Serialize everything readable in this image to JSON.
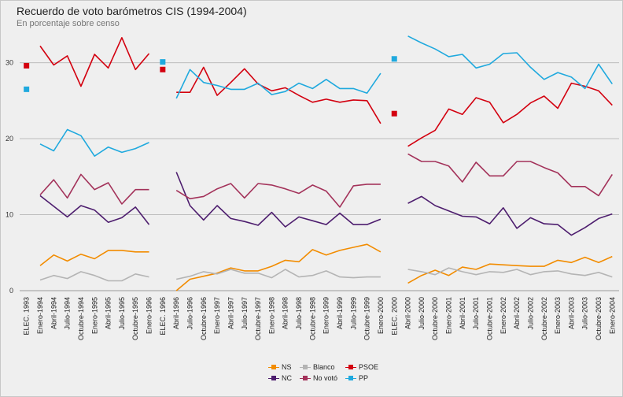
{
  "header": {
    "title": "Recuerdo de voto barómetros CIS (1994-2004)",
    "subtitle": "En porcentaje sobre censo"
  },
  "chart_data": {
    "type": "line",
    "title": "Recuerdo de voto barómetros CIS (1994-2004)",
    "subtitle": "En porcentaje sobre censo",
    "ylim": [
      0,
      34
    ],
    "yticks": [
      0,
      10,
      20,
      30
    ],
    "grid": true,
    "legend_position": "bottom-center",
    "categories": [
      "ELEC. 1993",
      "Enero-1994",
      "Abril-1994",
      "Julio-1994",
      "Octubre-1994",
      "Enero-1995",
      "Abril-1995",
      "Julio-1995",
      "Octubre-1995",
      "Enero-1996",
      "ELEC. 1996",
      "Abril-1996",
      "Julio-1996",
      "Octubre-1996",
      "Enero-1997",
      "Abril-1997",
      "Julio-1997",
      "Octubre-1997",
      "Enero-1998",
      "Abril-1998",
      "Julio-1998",
      "Octubre-1998",
      "Enero-1999",
      "Abril-1999",
      "Julio-1999",
      "Octubre-1999",
      "Enero-2000",
      "ELEC. 2000",
      "Abril-2000",
      "Julio-2000",
      "Octubre-2000",
      "Enero-2001",
      "Abril-2001",
      "Julio-2001",
      "Octubre-2001",
      "Enero-2002",
      "Abril-2002",
      "Julio-2002",
      "Octubre-2002",
      "Enero-2003",
      "Abril-2003",
      "Julio-2003",
      "Octubre-2003",
      "Enero-2004"
    ],
    "segments": [
      {
        "election_index": 0,
        "start": 1,
        "end": 9
      },
      {
        "election_index": 10,
        "start": 11,
        "end": 26
      },
      {
        "election_index": 27,
        "start": 28,
        "end": 43
      }
    ],
    "series": [
      {
        "name": "NS",
        "color": "#f28c00",
        "values": [
          null,
          3.3,
          4.7,
          3.9,
          4.8,
          4.2,
          5.3,
          5.3,
          5.1,
          5.1,
          null,
          0.0,
          1.5,
          1.9,
          2.3,
          3.0,
          2.6,
          2.6,
          3.2,
          4.0,
          3.8,
          5.4,
          4.7,
          5.3,
          5.7,
          6.1,
          5.1,
          null,
          1.0,
          2.0,
          2.7,
          2.0,
          3.1,
          2.8,
          3.5,
          3.4,
          3.3,
          3.2,
          3.2,
          4.0,
          3.7,
          4.4,
          3.7,
          4.5
        ],
        "election_values": [
          null,
          null,
          null
        ]
      },
      {
        "name": "Blanco",
        "color": "#b4b4b4",
        "values": [
          null,
          1.4,
          2.0,
          1.6,
          2.5,
          2.0,
          1.3,
          1.3,
          2.2,
          1.8,
          null,
          1.5,
          1.9,
          2.5,
          2.2,
          2.8,
          2.3,
          2.3,
          1.7,
          2.8,
          1.8,
          2.0,
          2.6,
          1.8,
          1.7,
          1.8,
          1.8,
          null,
          2.8,
          2.5,
          2.1,
          3.0,
          2.5,
          2.1,
          2.5,
          2.4,
          2.8,
          2.1,
          2.5,
          2.6,
          2.2,
          2.0,
          2.4,
          1.8
        ],
        "election_values": [
          null,
          null,
          null
        ]
      },
      {
        "name": "PSOE",
        "color": "#d3000f",
        "values": [
          null,
          32.2,
          29.7,
          30.9,
          26.9,
          31.1,
          29.3,
          33.3,
          29.1,
          31.2,
          null,
          26.1,
          26.1,
          29.4,
          25.7,
          27.4,
          29.2,
          27.2,
          26.3,
          26.7,
          25.7,
          24.8,
          25.2,
          24.8,
          25.1,
          25.0,
          22.0,
          null,
          19.0,
          20.1,
          21.1,
          23.9,
          23.2,
          25.4,
          24.8,
          22.1,
          23.2,
          24.7,
          25.6,
          24.0,
          27.3,
          26.9,
          26.3,
          24.4
        ],
        "election_values": [
          29.6,
          29.1,
          23.3
        ]
      },
      {
        "name": "NC",
        "color": "#4d1d6e",
        "values": [
          null,
          12.5,
          11.1,
          9.7,
          11.2,
          10.6,
          9.0,
          9.6,
          11.0,
          8.7,
          null,
          15.6,
          11.2,
          9.3,
          11.2,
          9.5,
          9.1,
          8.6,
          10.3,
          8.4,
          9.7,
          9.2,
          8.7,
          10.2,
          8.7,
          8.7,
          9.4,
          null,
          11.5,
          12.4,
          11.2,
          10.5,
          9.8,
          9.7,
          8.8,
          10.9,
          8.2,
          9.6,
          8.8,
          8.7,
          7.3,
          8.3,
          9.5,
          10.1
        ],
        "election_values": [
          null,
          null,
          null
        ]
      },
      {
        "name": "No votó",
        "color": "#a3325a",
        "values": [
          null,
          12.6,
          14.6,
          12.2,
          15.3,
          13.3,
          14.2,
          11.4,
          13.3,
          13.3,
          null,
          13.2,
          12.1,
          12.4,
          13.4,
          14.1,
          12.2,
          14.1,
          13.9,
          13.4,
          12.8,
          13.9,
          13.1,
          11.0,
          13.8,
          14.0,
          14.0,
          null,
          18.0,
          17.0,
          17.0,
          16.4,
          14.3,
          16.9,
          15.1,
          15.1,
          17.0,
          17.0,
          16.2,
          15.5,
          13.7,
          13.7,
          12.5,
          15.3
        ],
        "election_values": [
          null,
          null,
          null
        ]
      },
      {
        "name": "PP",
        "color": "#1fa9de",
        "values": [
          null,
          19.3,
          18.4,
          21.2,
          20.4,
          17.7,
          18.9,
          18.2,
          18.7,
          19.5,
          null,
          25.3,
          29.1,
          27.4,
          27.0,
          26.5,
          26.5,
          27.3,
          25.8,
          26.2,
          27.3,
          26.6,
          27.8,
          26.6,
          26.6,
          26.0,
          28.6,
          null,
          33.5,
          32.6,
          31.8,
          30.8,
          31.1,
          29.3,
          29.8,
          31.2,
          31.3,
          29.4,
          27.8,
          28.7,
          28.1,
          26.6,
          29.8,
          27.2
        ],
        "election_values": [
          26.5,
          30.1,
          30.5
        ]
      }
    ]
  },
  "legend": {
    "items": [
      {
        "label": "NS",
        "color": "#f28c00"
      },
      {
        "label": "Blanco",
        "color": "#b4b4b4"
      },
      {
        "label": "PSOE",
        "color": "#d3000f"
      },
      {
        "label": "NC",
        "color": "#4d1d6e"
      },
      {
        "label": "No votó",
        "color": "#a3325a"
      },
      {
        "label": "PP",
        "color": "#1fa9de"
      }
    ]
  }
}
